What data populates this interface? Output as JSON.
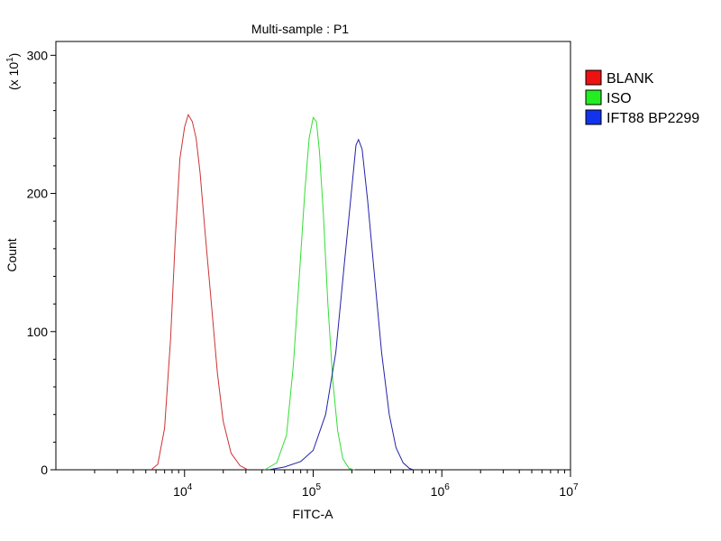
{
  "chart_data": {
    "type": "line",
    "title": "Multi-sample : P1",
    "xlabel": "FITC-A",
    "ylabel": "Count",
    "y_multiplier_label": "(x 10",
    "y_multiplier_exp": "1",
    "y_multiplier_close": ")",
    "x_scale": "log",
    "xlim": [
      1000,
      10000000
    ],
    "ylim": [
      0,
      310
    ],
    "x_ticks": [
      {
        "value": 10000,
        "base": "10",
        "exp": "4"
      },
      {
        "value": 100000,
        "base": "10",
        "exp": "5"
      },
      {
        "value": 1000000,
        "base": "10",
        "exp": "6"
      },
      {
        "value": 10000000,
        "base": "10",
        "exp": "7"
      }
    ],
    "y_ticks": [
      {
        "value": 0,
        "label": "0"
      },
      {
        "value": 100,
        "label": "100"
      },
      {
        "value": 200,
        "label": "200"
      },
      {
        "value": 300,
        "label": "300"
      }
    ],
    "grid": false,
    "legend_position": "right",
    "series": [
      {
        "name": "BLANK",
        "color": "#cc3333",
        "swatch": "#ee1111",
        "points": [
          [
            5500,
            0
          ],
          [
            6200,
            4
          ],
          [
            7000,
            30
          ],
          [
            7800,
            95
          ],
          [
            8500,
            170
          ],
          [
            9200,
            225
          ],
          [
            10000,
            248
          ],
          [
            10700,
            257
          ],
          [
            11500,
            252
          ],
          [
            12300,
            240
          ],
          [
            13200,
            215
          ],
          [
            14500,
            170
          ],
          [
            16000,
            125
          ],
          [
            18000,
            70
          ],
          [
            20000,
            35
          ],
          [
            23000,
            12
          ],
          [
            27000,
            3
          ],
          [
            31000,
            0
          ]
        ]
      },
      {
        "name": "ISO",
        "color": "#33dd33",
        "swatch": "#22ee22",
        "points": [
          [
            42000,
            0
          ],
          [
            52000,
            5
          ],
          [
            62000,
            25
          ],
          [
            70000,
            75
          ],
          [
            78000,
            140
          ],
          [
            86000,
            200
          ],
          [
            93000,
            240
          ],
          [
            100000,
            255
          ],
          [
            106000,
            252
          ],
          [
            112000,
            230
          ],
          [
            120000,
            185
          ],
          [
            130000,
            120
          ],
          [
            142000,
            65
          ],
          [
            155000,
            28
          ],
          [
            170000,
            8
          ],
          [
            190000,
            1
          ],
          [
            210000,
            0
          ]
        ]
      },
      {
        "name": "IFT88 BP2299",
        "color": "#2222aa",
        "swatch": "#1133ee",
        "points": [
          [
            45000,
            0
          ],
          [
            60000,
            2
          ],
          [
            80000,
            6
          ],
          [
            100000,
            14
          ],
          [
            125000,
            40
          ],
          [
            150000,
            85
          ],
          [
            175000,
            150
          ],
          [
            200000,
            205
          ],
          [
            215000,
            235
          ],
          [
            225000,
            239
          ],
          [
            240000,
            232
          ],
          [
            265000,
            195
          ],
          [
            300000,
            140
          ],
          [
            340000,
            85
          ],
          [
            390000,
            40
          ],
          [
            440000,
            16
          ],
          [
            500000,
            5
          ],
          [
            560000,
            1
          ],
          [
            600000,
            0
          ]
        ]
      }
    ]
  }
}
